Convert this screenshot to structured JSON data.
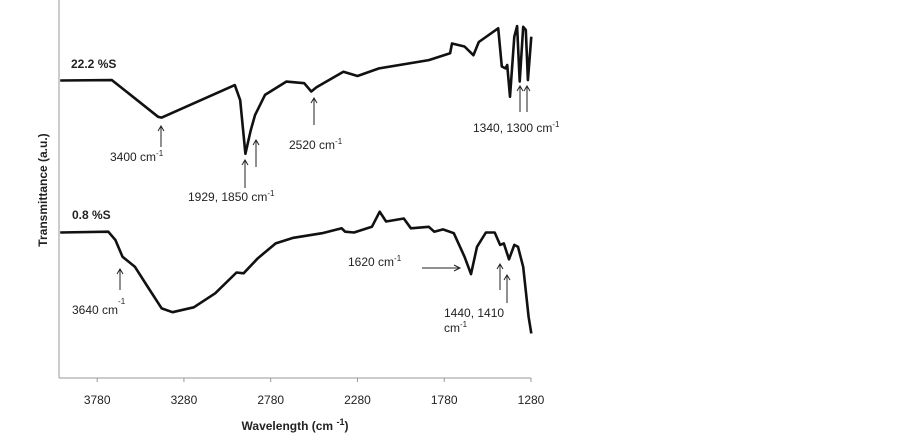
{
  "chart_data": {
    "type": "line",
    "title": "",
    "xlabel": "Wavelength (cm",
    "xlabel_sup": "-1",
    "xlabel_close": ")",
    "ylabel": "Transmittance (a.u.)",
    "xlim": [
      4000,
      1280
    ],
    "x_reversed": true,
    "ylim": [
      0,
      100
    ],
    "grid": false,
    "x_ticks": [
      "3780",
      "3280",
      "2780",
      "2280",
      "1780",
      "1280"
    ],
    "x_tick_values": [
      3780,
      3280,
      2780,
      2280,
      1780,
      1280
    ],
    "series": [
      {
        "name": "22.2 %S",
        "x": [
          3993,
          3695,
          3429,
          3408,
          2987,
          2956,
          2926,
          2895,
          2870,
          2813,
          2690,
          2587,
          2546,
          2516,
          2361,
          2280,
          2156,
          1869,
          1746,
          1735,
          1663,
          1612,
          1581,
          1469,
          1448,
          1427,
          1417,
          1401,
          1376,
          1360,
          1345,
          1325,
          1310,
          1298,
          1278
        ],
        "y": [
          78.7,
          78.8,
          69.1,
          68.9,
          77.5,
          73.5,
          59.3,
          65.6,
          69.6,
          74.9,
          78.4,
          78.0,
          75.8,
          76.9,
          81.0,
          79.9,
          81.9,
          84.1,
          85.9,
          88.5,
          87.7,
          85.4,
          88.9,
          92.5,
          82.4,
          81.9,
          82.8,
          74.4,
          90.3,
          93.1,
          78.4,
          92.9,
          92.1,
          78.8,
          90.3
        ]
      },
      {
        "name": "0.8 %S",
        "x": [
          3993,
          3716,
          3675,
          3634,
          3562,
          3490,
          3408,
          3346,
          3223,
          3100,
          2977,
          2936,
          2854,
          2751,
          2649,
          2484,
          2371,
          2351,
          2300,
          2197,
          2152,
          2115,
          2013,
          1972,
          1869,
          1838,
          1787,
          1725,
          1663,
          1626,
          1591,
          1540,
          1489,
          1458,
          1437,
          1407,
          1376,
          1355,
          1325,
          1294,
          1278
        ],
        "y": [
          38.5,
          38.7,
          36.5,
          32.1,
          29.4,
          24.2,
          18.4,
          17.4,
          18.7,
          22.4,
          27.9,
          27.7,
          31.7,
          35.6,
          37.1,
          38.3,
          39.6,
          38.7,
          38.5,
          40.0,
          44.0,
          41.4,
          42.2,
          39.6,
          40.0,
          38.7,
          39.3,
          38.3,
          32.1,
          27.5,
          34.7,
          38.5,
          38.5,
          35.2,
          35.6,
          31.4,
          35.2,
          34.7,
          29.4,
          16.2,
          11.8
        ]
      }
    ],
    "annotations": {
      "a3400": "3400 cm",
      "a1929": "1929, 1850  cm",
      "a2520": "2520 cm",
      "a1340": "1340, 1300  cm",
      "a3640": "3640 cm",
      "a1620": "1620 cm",
      "a1440_line1": "1440, 1410",
      "a1440_line2": "cm",
      "sup": "-1"
    }
  }
}
